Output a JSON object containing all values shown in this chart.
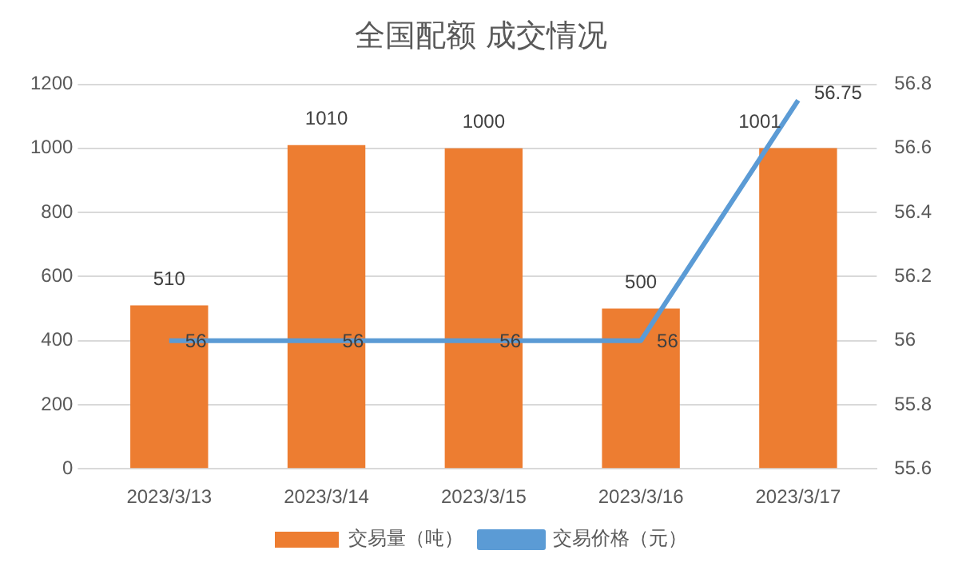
{
  "chart_data": {
    "type": "bar",
    "title": "全国配额 成交情况",
    "categories": [
      "2023/3/13",
      "2023/3/14",
      "2023/3/15",
      "2023/3/16",
      "2023/3/17"
    ],
    "series": [
      {
        "name": "交易量（吨）",
        "color": "#ed7d31",
        "values": [
          510,
          1010,
          1000,
          500,
          1001
        ]
      },
      {
        "name": "交易价格（元）",
        "type": "line",
        "axis": "y2",
        "color": "#5b9bd5",
        "values": [
          56,
          56,
          56,
          56,
          56.75
        ]
      }
    ],
    "ylim": [
      0,
      1200
    ],
    "yticks": [
      0,
      200,
      400,
      600,
      800,
      1000,
      1200
    ],
    "y2lim": [
      55.6,
      56.8
    ],
    "y2ticks": [
      55.6,
      55.8,
      56,
      56.2,
      56.4,
      56.6,
      56.8
    ],
    "grid": "y",
    "legend": "bottom",
    "marker": "none",
    "data_labels": true
  }
}
